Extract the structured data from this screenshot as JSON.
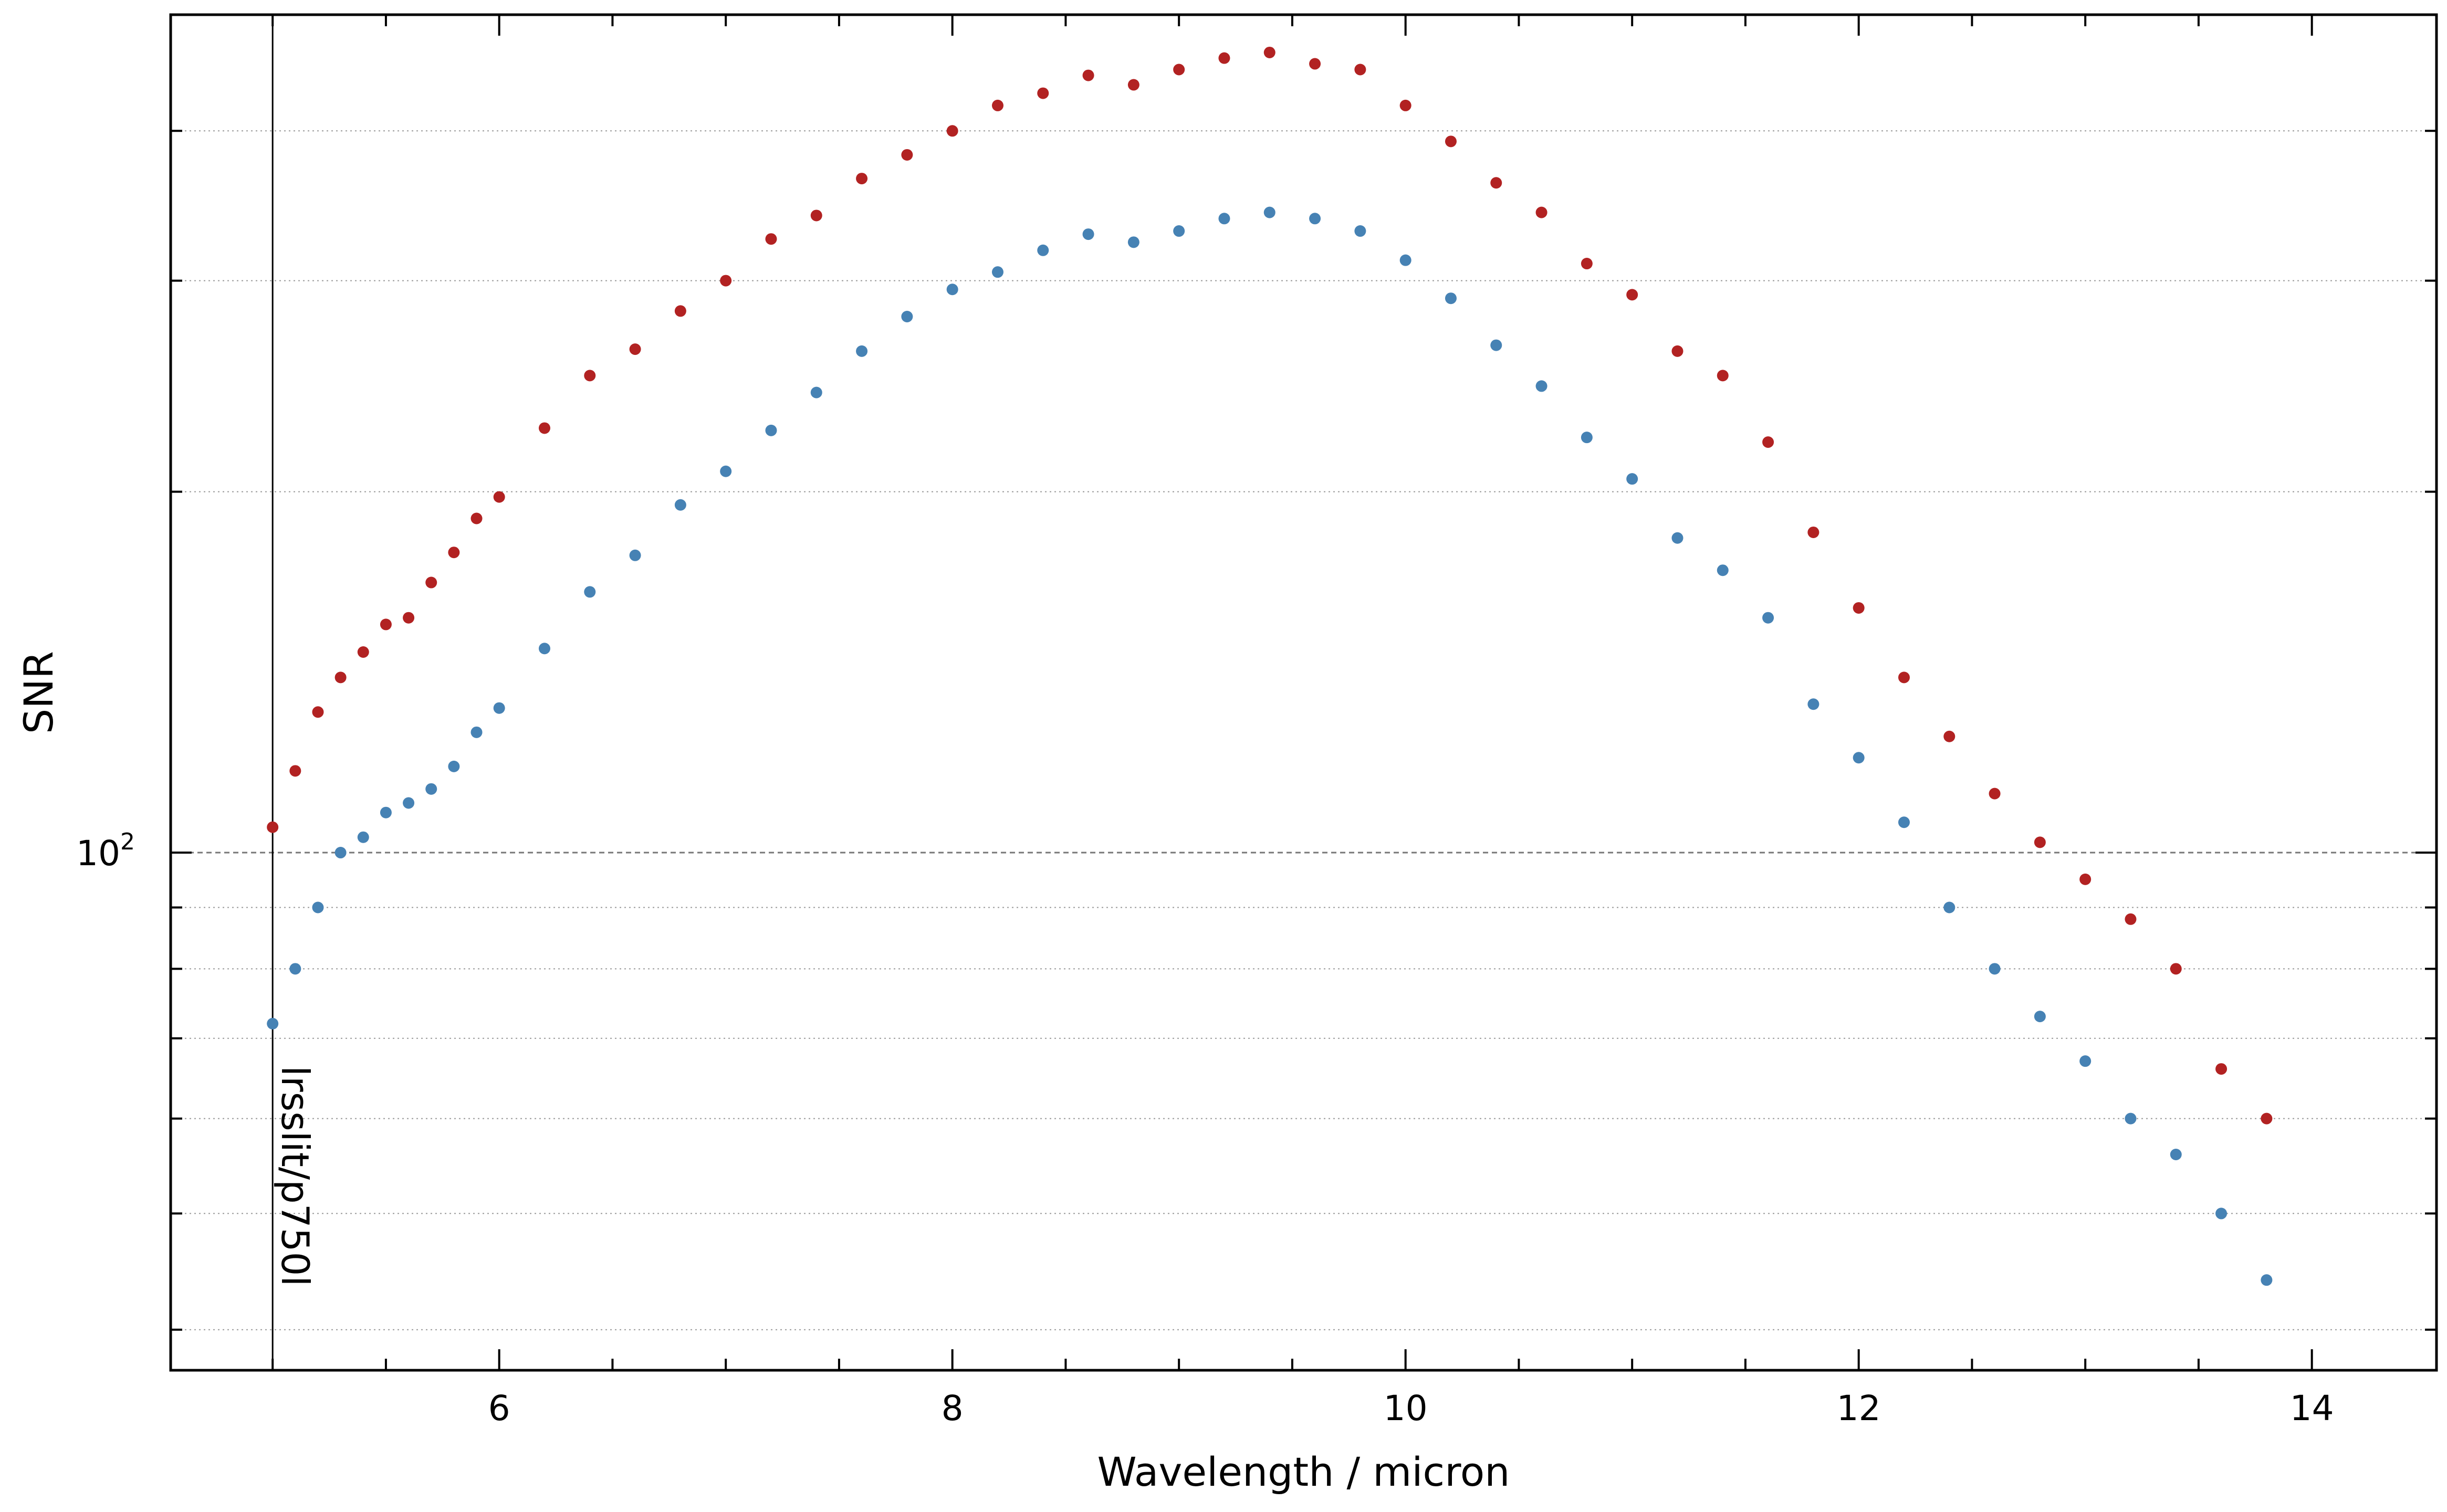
{
  "chart_data": {
    "type": "scatter",
    "xlabel": "Wavelength / micron",
    "ylabel": "SNR",
    "xlim": [
      4.55,
      14.55
    ],
    "ylim": [
      37,
      500
    ],
    "yscale": "log",
    "x_ticks": [
      6,
      8,
      10,
      12,
      14
    ],
    "x_tick_labels": [
      "6",
      "8",
      "10",
      "12",
      "14"
    ],
    "y_tick_label_base": "10",
    "y_tick_label_exp": "2",
    "y_tick_label_value": 100,
    "y_gridlines": [
      40,
      50,
      60,
      70,
      80,
      90,
      100,
      200,
      300,
      400
    ],
    "grid": "horizontal dotted, dashed at 10^2",
    "vertical_line": {
      "x": 5.0,
      "label": "lrsslit/p750l"
    },
    "series": [
      {
        "color": "#b22222",
        "x": [
          5.0,
          5.1,
          5.2,
          5.3,
          5.4,
          5.5,
          5.6,
          5.7,
          5.8,
          5.9,
          6.0,
          6.2,
          6.4,
          6.6,
          6.8,
          7.0,
          7.2,
          7.4,
          7.6,
          7.8,
          8.0,
          8.2,
          8.4,
          8.6,
          8.8,
          9.0,
          9.2,
          9.4,
          9.6,
          9.8,
          10.0,
          10.2,
          10.4,
          10.6,
          10.8,
          11.0,
          11.2,
          11.4,
          11.6,
          11.8,
          12.0,
          12.2,
          12.4,
          12.6,
          12.8,
          13.0,
          13.2,
          13.4,
          13.6,
          13.8
        ],
        "values": [
          105,
          117,
          131,
          140,
          147,
          155,
          157,
          168,
          178,
          190,
          198,
          226,
          250,
          263,
          283,
          300,
          325,
          340,
          365,
          382,
          400,
          420,
          430,
          445,
          437,
          450,
          460,
          465,
          455,
          450,
          420,
          392,
          362,
          342,
          310,
          292,
          262,
          250,
          220,
          185,
          160,
          140,
          125,
          112,
          102,
          95,
          88,
          80,
          66,
          60
        ]
      },
      {
        "color": "#4682b4",
        "x": [
          5.0,
          5.1,
          5.2,
          5.3,
          5.4,
          5.5,
          5.6,
          5.7,
          5.8,
          5.9,
          6.0,
          6.2,
          6.4,
          6.6,
          6.8,
          7.0,
          7.2,
          7.4,
          7.6,
          7.8,
          8.0,
          8.2,
          8.4,
          8.6,
          8.8,
          9.0,
          9.2,
          9.4,
          9.6,
          9.8,
          10.0,
          10.2,
          10.4,
          10.6,
          10.8,
          11.0,
          11.2,
          11.4,
          11.6,
          11.8,
          12.0,
          12.2,
          12.4,
          12.6,
          12.8,
          13.0,
          13.2,
          13.4,
          13.6,
          13.8
        ],
        "values": [
          72,
          80,
          90,
          100,
          103,
          108,
          110,
          113,
          118,
          126,
          132,
          148,
          165,
          177,
          195,
          208,
          225,
          242,
          262,
          280,
          295,
          305,
          318,
          328,
          323,
          330,
          338,
          342,
          338,
          330,
          312,
          290,
          265,
          245,
          222,
          205,
          183,
          172,
          157,
          133,
          120,
          106,
          90,
          80,
          73,
          67,
          60,
          56,
          50,
          44
        ]
      }
    ]
  }
}
